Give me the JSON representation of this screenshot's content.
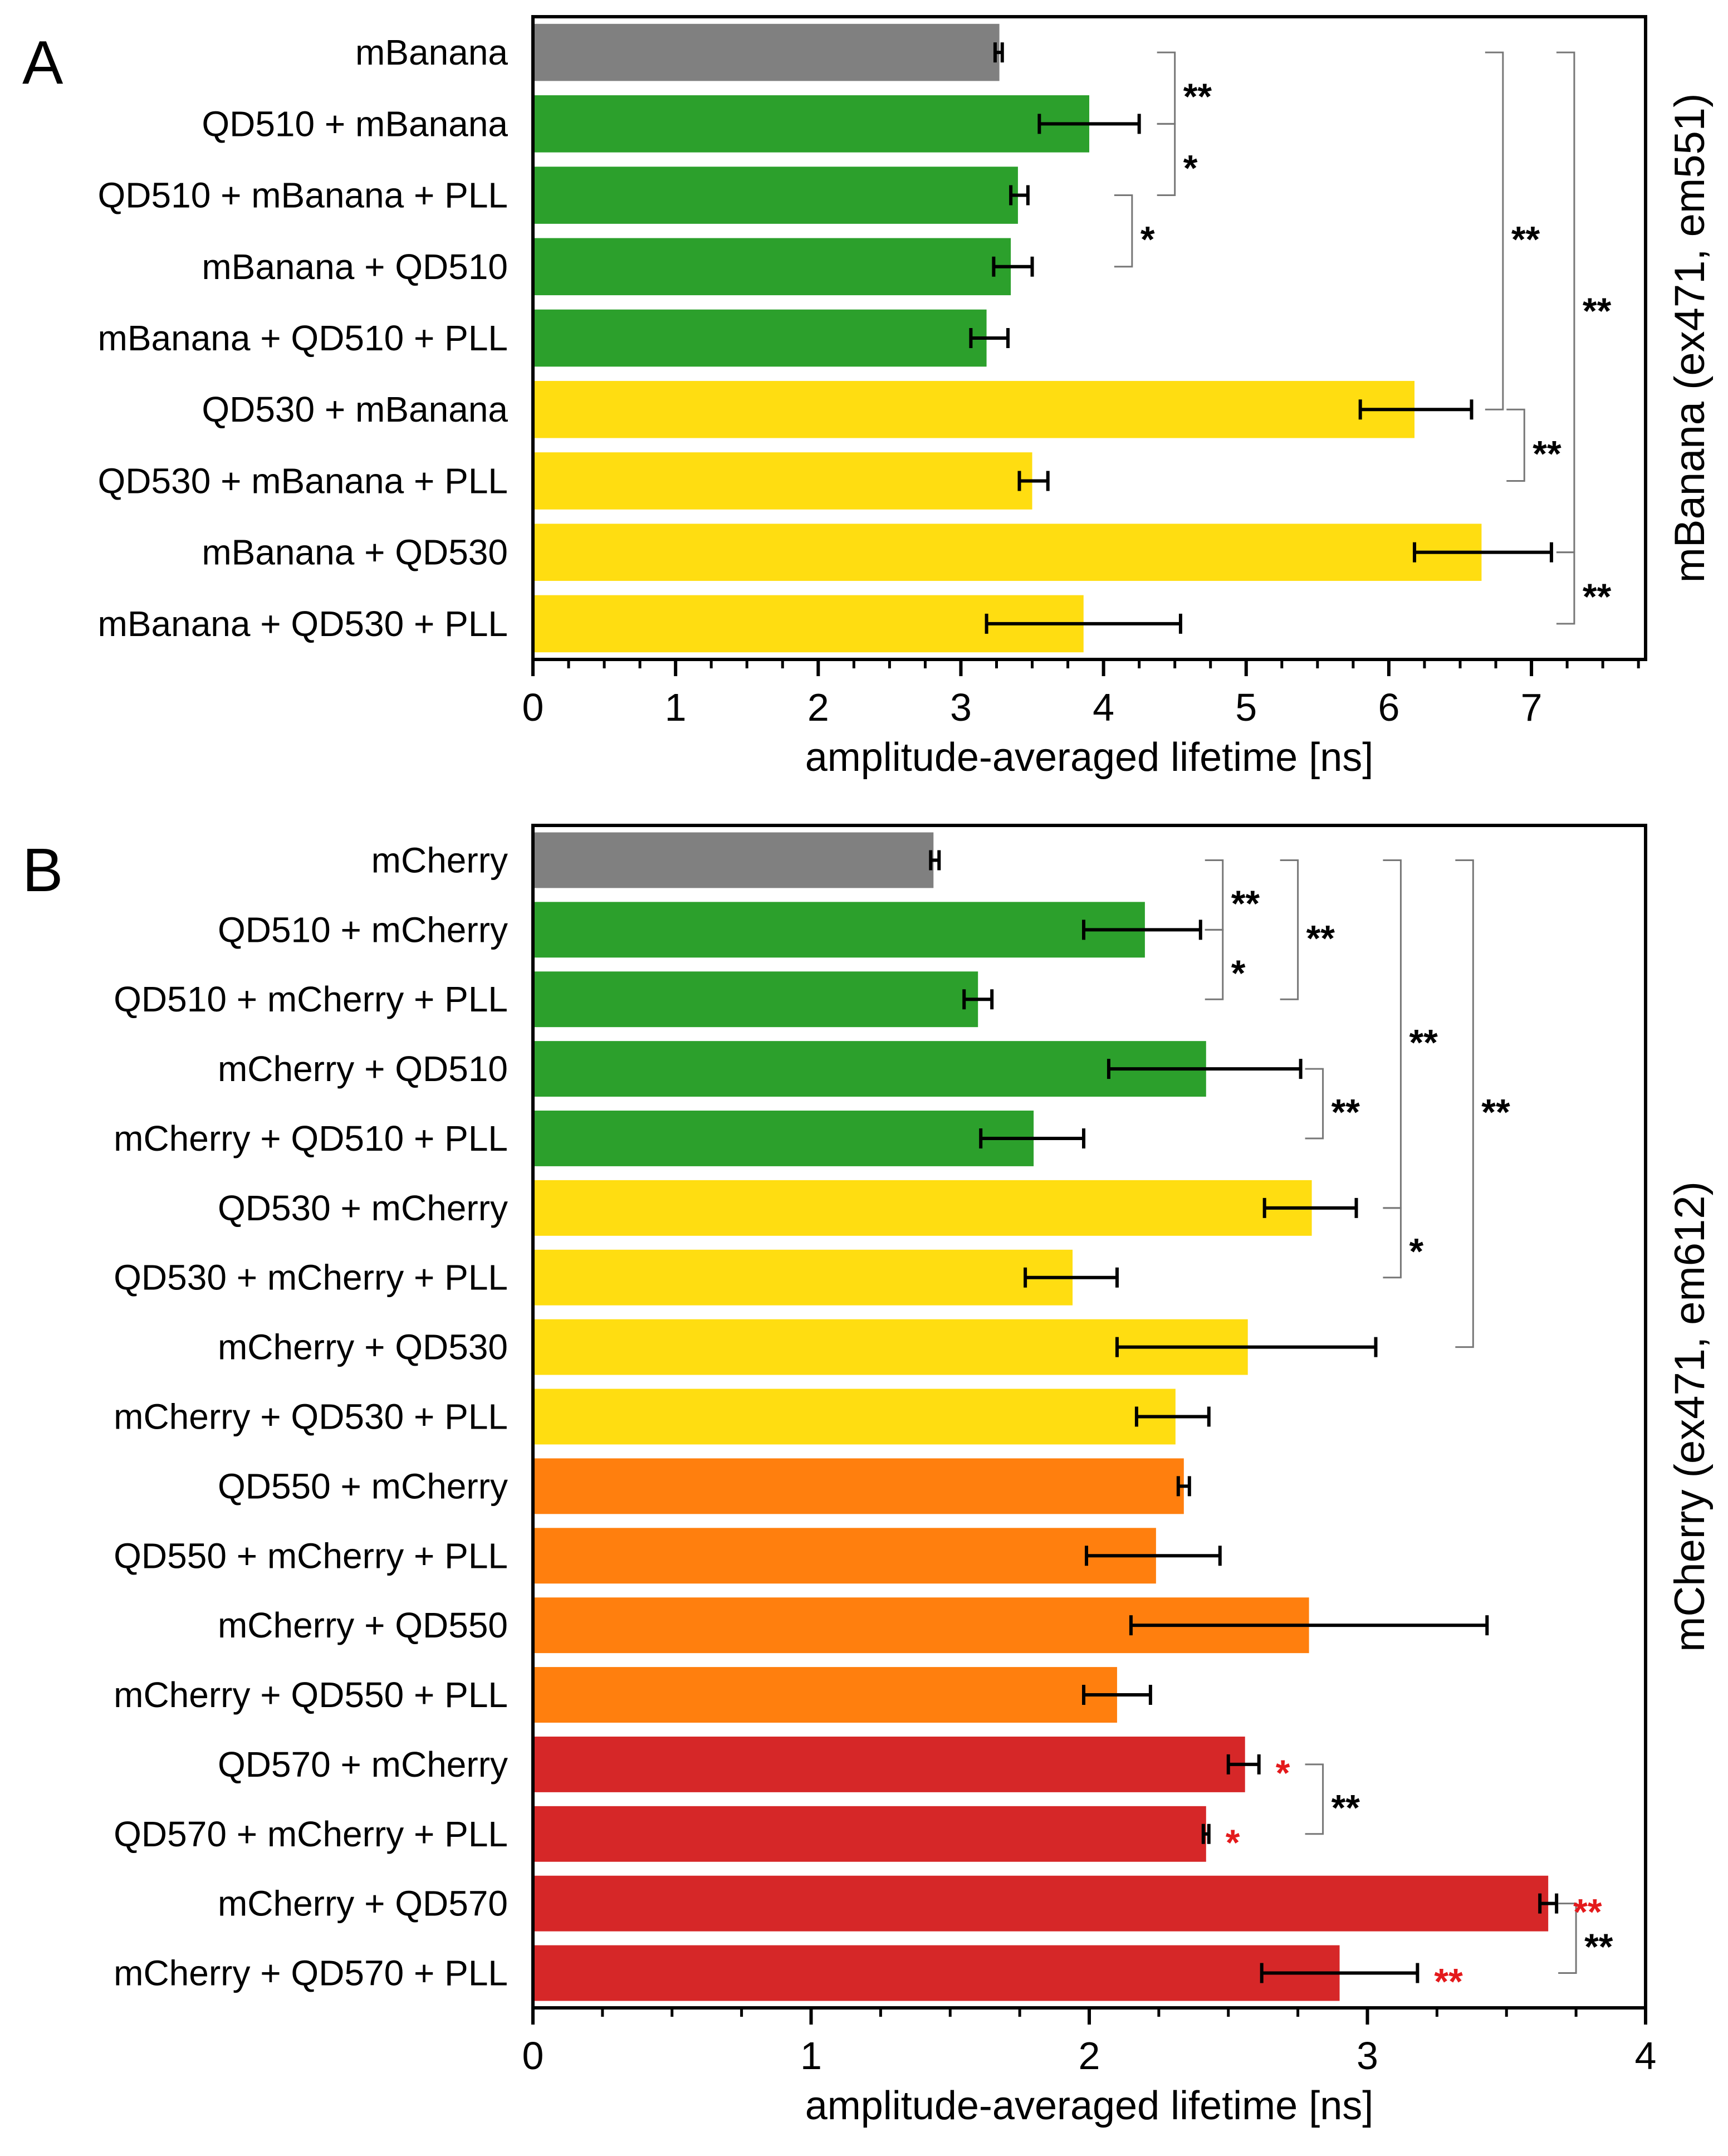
{
  "chart_data": [
    {
      "type": "bar",
      "orientation": "horizontal",
      "panel_label": "A",
      "title": "",
      "xlabel": "amplitude-averaged lifetime [ns]",
      "ylabel": "mBanana (ex471, em551)",
      "xlim": [
        0,
        7.8
      ],
      "xticks": [
        "0",
        "1",
        "2",
        "3",
        "4",
        "5",
        "6",
        "7"
      ],
      "colors": {
        "gray": "#808080",
        "green": "#2ca02c",
        "yellow": "#ffdd11"
      },
      "bars": [
        {
          "label": "mBanana",
          "value": 3.27,
          "err_low": 3.24,
          "err_high": 3.29,
          "color": "gray"
        },
        {
          "label": "QD510 + mBanana",
          "value": 3.9,
          "err_low": 3.55,
          "err_high": 4.25,
          "color": "green"
        },
        {
          "label": "QD510 + mBanana + PLL",
          "value": 3.4,
          "err_low": 3.35,
          "err_high": 3.47,
          "color": "green"
        },
        {
          "label": "mBanana + QD510",
          "value": 3.35,
          "err_low": 3.23,
          "err_high": 3.5,
          "color": "green"
        },
        {
          "label": "mBanana + QD510 + PLL",
          "value": 3.18,
          "err_low": 3.07,
          "err_high": 3.33,
          "color": "green"
        },
        {
          "label": "QD530 + mBanana",
          "value": 6.18,
          "err_low": 5.8,
          "err_high": 6.58,
          "color": "yellow"
        },
        {
          "label": "QD530 + mBanana + PLL",
          "value": 3.5,
          "err_low": 3.41,
          "err_high": 3.61,
          "color": "yellow"
        },
        {
          "label": "mBanana + QD530",
          "value": 6.65,
          "err_low": 6.18,
          "err_high": 7.14,
          "color": "yellow"
        },
        {
          "label": "mBanana + QD530 + PLL",
          "value": 3.86,
          "err_low": 3.18,
          "err_high": 4.54,
          "color": "yellow"
        }
      ],
      "significance": [
        {
          "from": 0,
          "to": 1,
          "label": "**",
          "x": 4.5
        },
        {
          "from": 1,
          "to": 2,
          "label": "*",
          "x": 4.5
        },
        {
          "from": 2,
          "to": 3,
          "label": "*",
          "x": 4.2
        },
        {
          "from": 0,
          "to": 5,
          "label": "**",
          "x": 6.8
        },
        {
          "from": 0,
          "to": 7,
          "label": "**",
          "x": 7.3
        },
        {
          "from": 5,
          "to": 6,
          "label": "**",
          "x": 6.95
        },
        {
          "from": 7,
          "to": 8,
          "label": "**",
          "x": 7.3
        }
      ]
    },
    {
      "type": "bar",
      "orientation": "horizontal",
      "panel_label": "B",
      "title": "",
      "xlabel": "amplitude-averaged lifetime [ns]",
      "ylabel": "mCherry (ex471, em612)",
      "xlim": [
        0,
        4
      ],
      "xticks": [
        "0",
        "1",
        "2",
        "3",
        "4"
      ],
      "colors": {
        "gray": "#808080",
        "green": "#2ca02c",
        "yellow": "#ffdd11",
        "orange": "#ff7f0e",
        "red": "#d62728"
      },
      "bars": [
        {
          "label": "mCherry",
          "value": 1.44,
          "err_low": 1.43,
          "err_high": 1.46,
          "color": "gray"
        },
        {
          "label": "QD510 + mCherry",
          "value": 2.2,
          "err_low": 1.98,
          "err_high": 2.4,
          "color": "green"
        },
        {
          "label": "QD510 + mCherry + PLL",
          "value": 1.6,
          "err_low": 1.55,
          "err_high": 1.65,
          "color": "green"
        },
        {
          "label": "mCherry + QD510",
          "value": 2.42,
          "err_low": 2.07,
          "err_high": 2.76,
          "color": "green"
        },
        {
          "label": "mCherry + QD510 + PLL",
          "value": 1.8,
          "err_low": 1.61,
          "err_high": 1.98,
          "color": "green"
        },
        {
          "label": "QD530 + mCherry",
          "value": 2.8,
          "err_low": 2.63,
          "err_high": 2.96,
          "color": "yellow"
        },
        {
          "label": "QD530 + mCherry + PLL",
          "value": 1.94,
          "err_low": 1.77,
          "err_high": 2.1,
          "color": "yellow"
        },
        {
          "label": "mCherry + QD530",
          "value": 2.57,
          "err_low": 2.1,
          "err_high": 3.03,
          "color": "yellow"
        },
        {
          "label": "mCherry + QD530 + PLL",
          "value": 2.31,
          "err_low": 2.17,
          "err_high": 2.43,
          "color": "yellow"
        },
        {
          "label": "QD550 + mCherry",
          "value": 2.34,
          "err_low": 2.32,
          "err_high": 2.36,
          "color": "orange"
        },
        {
          "label": "QD550 + mCherry + PLL",
          "value": 2.24,
          "err_low": 1.99,
          "err_high": 2.47,
          "color": "orange"
        },
        {
          "label": "mCherry + QD550",
          "value": 2.79,
          "err_low": 2.15,
          "err_high": 3.43,
          "color": "orange"
        },
        {
          "label": "mCherry + QD550 + PLL",
          "value": 2.1,
          "err_low": 1.98,
          "err_high": 2.22,
          "color": "orange"
        },
        {
          "label": "QD570 + mCherry",
          "value": 2.56,
          "err_low": 2.5,
          "err_high": 2.61,
          "color": "red"
        },
        {
          "label": "QD570 + mCherry + PLL",
          "value": 2.42,
          "err_low": 2.41,
          "err_high": 2.43,
          "color": "red"
        },
        {
          "label": "mCherry + QD570",
          "value": 3.65,
          "err_low": 3.62,
          "err_high": 3.68,
          "color": "red"
        },
        {
          "label": "mCherry + QD570 + PLL",
          "value": 2.9,
          "err_low": 2.62,
          "err_high": 3.18,
          "color": "red"
        }
      ],
      "significance": [
        {
          "from": 0,
          "to": 1,
          "label": "**",
          "x": 2.48
        },
        {
          "from": 1,
          "to": 2,
          "label": "*",
          "x": 2.48
        },
        {
          "from": 0,
          "to": 2,
          "label": "**",
          "x": 2.75
        },
        {
          "from": 3,
          "to": 4,
          "label": "**",
          "x": 2.84
        },
        {
          "from": 0,
          "to": 5,
          "label": "**",
          "x": 3.12
        },
        {
          "from": 0,
          "to": 7,
          "label": "**",
          "x": 3.38
        },
        {
          "from": 5,
          "to": 6,
          "label": "*",
          "x": 3.12
        },
        {
          "from": 13,
          "to": 14,
          "label": "**",
          "x": 2.84
        },
        {
          "from": 15,
          "to": 16,
          "label": "**",
          "x": 3.75
        }
      ],
      "bar_markers": [
        {
          "bar": 13,
          "label": "*",
          "color": "#e41a1c"
        },
        {
          "bar": 14,
          "label": "*",
          "color": "#e41a1c"
        },
        {
          "bar": 15,
          "label": "**",
          "color": "#e41a1c"
        },
        {
          "bar": 16,
          "label": "**",
          "color": "#e41a1c"
        }
      ]
    }
  ]
}
